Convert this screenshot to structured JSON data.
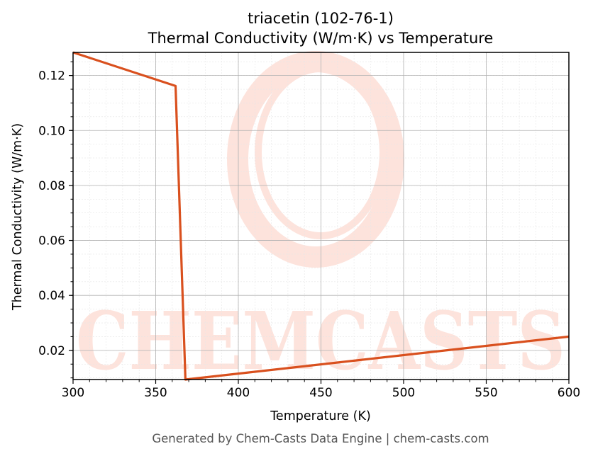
{
  "chart_data": {
    "type": "line",
    "title": "triacetin (102-76-1)",
    "subtitle": "Thermal Conductivity (W/m·K) vs Temperature",
    "xlabel": "Temperature (K)",
    "ylabel": "Thermal Conductivity (W/m·K)",
    "xlim": [
      300,
      600
    ],
    "ylim": [
      0.0094,
      0.1284
    ],
    "xticks": [
      "300",
      "350",
      "400",
      "450",
      "500",
      "550",
      "600"
    ],
    "yticks": [
      "0.02",
      "0.04",
      "0.06",
      "0.08",
      "0.10",
      "0.12"
    ],
    "grid": true,
    "legend": "none",
    "series": [
      {
        "color": "#d9501e",
        "x": [
          300,
          362,
          368,
          600
        ],
        "y": [
          0.1284,
          0.1162,
          0.0094,
          0.025
        ]
      }
    ]
  },
  "watermark": {
    "text": "CHEMCASTS",
    "color": "#fde3dc"
  },
  "footer": "Generated by Chem-Casts Data Engine | chem-casts.com"
}
